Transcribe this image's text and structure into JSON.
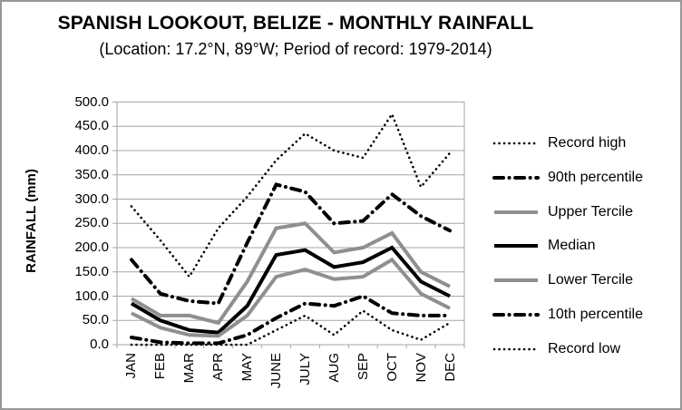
{
  "chart_data": {
    "type": "line",
    "title": "SPANISH LOOKOUT, BELIZE - MONTHLY RAINFALL",
    "subtitle": "(Location: 17.2°N, 89°W; Period of record: 1979-2014)",
    "ylabel": "RAINFALL (mm)",
    "ylim": [
      0,
      500
    ],
    "ytick_step": 50,
    "ytick_labels": [
      "500.0",
      "450.0",
      "400.0",
      "350.0",
      "300.0",
      "250.0",
      "200.0",
      "150.0",
      "100.0",
      "50.0",
      "0.0"
    ],
    "categories": [
      "JAN",
      "FEB",
      "MAR",
      "APR",
      "MAY",
      "JUNE",
      "JULY",
      "AUG",
      "SEP",
      "OCT",
      "NOV",
      "DEC"
    ],
    "grid": "horizontal",
    "legend_position": "right",
    "colors": {
      "grid": "#A6A6A6",
      "frame": "#A6A6A6",
      "black_series": "#000000",
      "gray_series": "#8F8F8F"
    },
    "series": [
      {
        "name": "Record high",
        "style": "dotted",
        "color": "#000000",
        "width": 2.6,
        "values": [
          285,
          215,
          140,
          240,
          305,
          380,
          435,
          400,
          385,
          475,
          325,
          395
        ]
      },
      {
        "name": "90th percentile",
        "style": "dashdot",
        "color": "#000000",
        "width": 4,
        "values": [
          175,
          105,
          90,
          85,
          210,
          330,
          315,
          250,
          255,
          310,
          265,
          235
        ]
      },
      {
        "name": "Upper Tercile",
        "style": "solid",
        "color": "#8F8F8F",
        "width": 4,
        "values": [
          95,
          60,
          60,
          45,
          130,
          240,
          250,
          190,
          200,
          230,
          150,
          120
        ]
      },
      {
        "name": "Median",
        "style": "solid",
        "color": "#000000",
        "width": 4,
        "values": [
          85,
          50,
          30,
          25,
          80,
          185,
          195,
          160,
          170,
          200,
          130,
          100
        ]
      },
      {
        "name": "Lower Tercile",
        "style": "solid",
        "color": "#8F8F8F",
        "width": 4,
        "values": [
          65,
          35,
          20,
          18,
          60,
          140,
          155,
          135,
          140,
          175,
          105,
          75
        ]
      },
      {
        "name": "10th percentile",
        "style": "dashdot",
        "color": "#000000",
        "width": 4,
        "values": [
          15,
          5,
          3,
          3,
          20,
          55,
          85,
          80,
          100,
          65,
          60,
          60
        ]
      },
      {
        "name": "Record low",
        "style": "dotted",
        "color": "#000000",
        "width": 2.6,
        "values": [
          0,
          0,
          0,
          0,
          0,
          30,
          60,
          20,
          70,
          30,
          10,
          45
        ]
      }
    ]
  }
}
